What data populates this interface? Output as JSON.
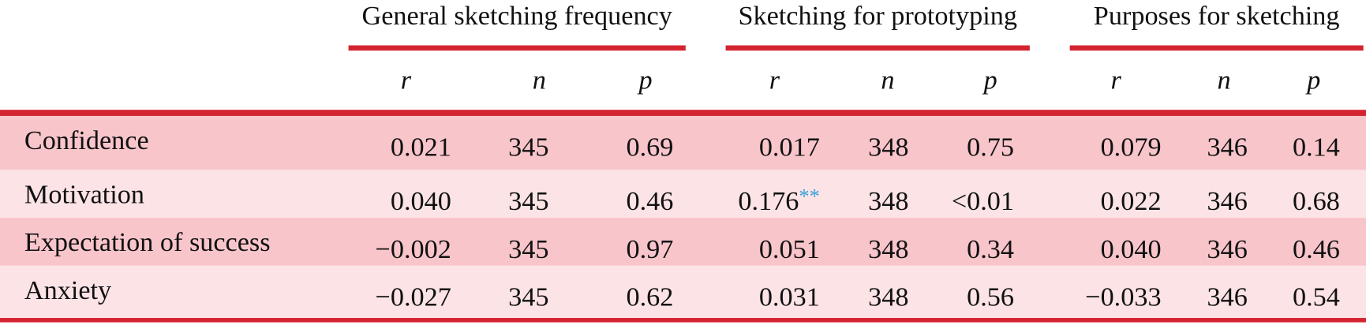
{
  "header": {
    "groups": [
      "General sketching frequency",
      "Sketching for prototyping",
      "Purposes for sketching"
    ],
    "columns": [
      "r",
      "n",
      "p",
      "r",
      "n",
      "p",
      "r",
      "n",
      "p"
    ]
  },
  "table": {
    "rows": [
      {
        "label": "Confidence",
        "cells": [
          "0.021",
          "345",
          "0.69",
          "0.017",
          "348",
          "0.75",
          "0.079",
          "346",
          "0.14"
        ]
      },
      {
        "label": "Motivation",
        "cells": [
          "0.040",
          "345",
          "0.46",
          {
            "text": "0.176",
            "mark": "**"
          },
          "348",
          "<0.01",
          "0.022",
          "346",
          "0.68"
        ]
      },
      {
        "label": "Expectation of success",
        "cells": [
          "−0.002",
          "345",
          "0.97",
          "0.051",
          "348",
          "0.34",
          "0.040",
          "346",
          "0.46"
        ]
      },
      {
        "label": "Anxiety",
        "cells": [
          "−0.027",
          "345",
          "0.62",
          "0.031",
          "348",
          "0.56",
          "−0.033",
          "346",
          "0.54"
        ]
      }
    ]
  }
}
